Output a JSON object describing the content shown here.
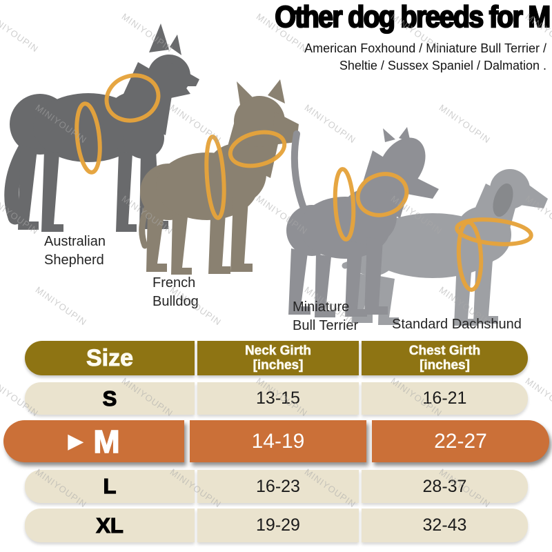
{
  "title": "Other dog breeds for M",
  "subtitle_line1": "American Foxhound / Miniature Bull Terrier /",
  "subtitle_line2": "Sheltie / Sussex Spaniel / Dalmation .",
  "watermark": "MINIYOUPIN",
  "dogs": [
    {
      "name": "Australian Shepherd",
      "label_line1": "Australian",
      "label_line2": "Shepherd"
    },
    {
      "name": "French Bulldog",
      "label_line1": "French",
      "label_line2": "Bulldog"
    },
    {
      "name": "Miniature Bull Terrier",
      "label_line1": "Miniature",
      "label_line2": "Bull Terrier"
    },
    {
      "name": "Standard Dachshund",
      "label_line1": "Standard Dachshund",
      "label_line2": ""
    }
  ],
  "size_table": {
    "columns": [
      {
        "line1": "Size",
        "line2": ""
      },
      {
        "line1": "Neck Girth",
        "line2": "[inches]"
      },
      {
        "line1": "Chest Girth",
        "line2": "[inches]"
      }
    ],
    "rows": [
      {
        "size": "S",
        "neck_girth": "13-15",
        "chest_girth": "16-21",
        "selected": false
      },
      {
        "size": "M",
        "neck_girth": "14-19",
        "chest_girth": "22-27",
        "selected": true
      },
      {
        "size": "L",
        "neck_girth": "16-23",
        "chest_girth": "28-37",
        "selected": false
      },
      {
        "size": "XL",
        "neck_girth": "19-29",
        "chest_girth": "32-43",
        "selected": false
      }
    ],
    "selected_size": "M",
    "selection_arrow": "▶"
  },
  "colors": {
    "header_bg": "#8E7413",
    "row_bg": "#EAE3CE",
    "selected_row_bg": "#CB7038",
    "ring": "#E5A33C",
    "watermark": "#A9A9A9",
    "dog_australian_shepherd": "#696A6C",
    "dog_french_bulldog": "#8A8171",
    "dog_miniature_bull_terrier": "#8F9095",
    "dog_standard_dachshund": "#9EA0A4"
  }
}
